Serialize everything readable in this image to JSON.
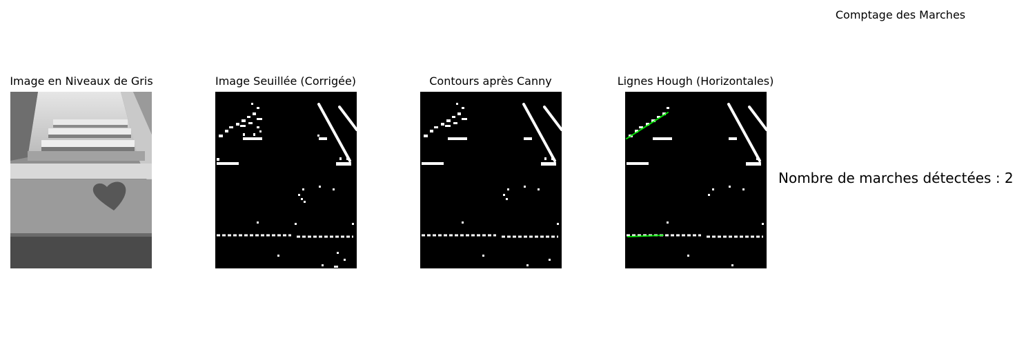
{
  "figure": {
    "suptitle": "Comptage des Marches",
    "panels": [
      {
        "title": "Image en Niveaux de Gris",
        "icon": "grayscale-stairs-photo"
      },
      {
        "title": "Image Seuillée (Corrigée)",
        "icon": "thresholded-binary-image"
      },
      {
        "title": "Contours après Canny",
        "icon": "canny-edges-image"
      },
      {
        "title": "Lignes Hough (Horizontales)",
        "icon": "hough-lines-image"
      }
    ],
    "result_text": "Nombre de marches détectées : 2"
  },
  "colors": {
    "background": "#ffffff",
    "binary_background": "#000000",
    "binary_foreground": "#ffffff",
    "hough_line": "#00ff00"
  }
}
